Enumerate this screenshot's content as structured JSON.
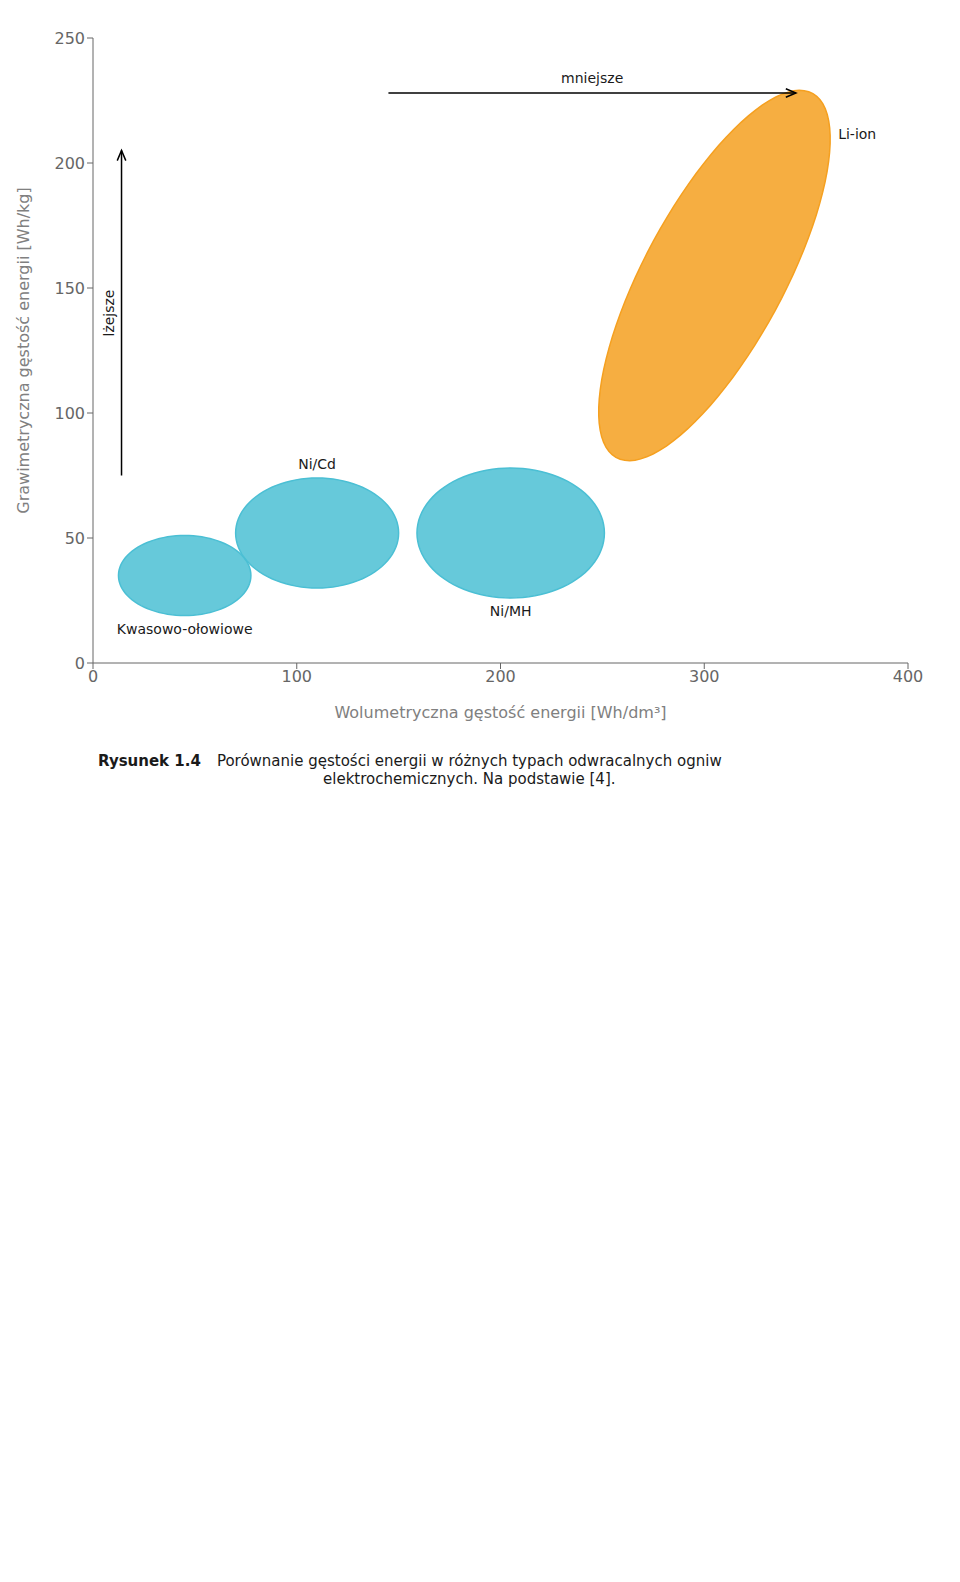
{
  "chart_data": {
    "type": "ellipse",
    "title": "Rysunek 1.4",
    "subtitle": [
      "Porównanie gęstości energii w różnych typach odwracalnych ogniw",
      "elektrochemicznych. Na podstawie [4]."
    ],
    "xlabel": "Wolumetryczna gęstość energii [Wh/dm³]",
    "ylabel": "Grawimetryczna gęstość energii [Wh/kg]",
    "xlim": [
      0,
      400
    ],
    "ylim": [
      0,
      250
    ],
    "xticks": [
      0,
      100,
      200,
      300,
      400
    ],
    "yticks": [
      0,
      50,
      100,
      150,
      200,
      250
    ],
    "grid": false,
    "series": [
      {
        "name": "Kwasowo-ołowiowe",
        "color": "#4bbfd4",
        "cx": 45,
        "cy": 35,
        "width": 65,
        "height": 32,
        "angle": 0
      },
      {
        "name": "Ni/Cd",
        "color": "#4bbfd4",
        "cx": 110,
        "cy": 52,
        "width": 80,
        "height": 44,
        "angle": 0
      },
      {
        "name": "Ni/MH",
        "color": "#4bbfd4",
        "cx": 205,
        "cy": 52,
        "width": 92,
        "height": 52,
        "angle": 0
      },
      {
        "name": "Li-ion",
        "color": "#f5a020",
        "cx": 305,
        "cy": 155,
        "width": 65,
        "height": 175,
        "angle": -35
      }
    ],
    "annotations": [
      {
        "text": "mniejsze",
        "x_start": 145,
        "y_start": 228,
        "x_end": 345,
        "y_end": 228
      },
      {
        "text": "lżejsze",
        "x_start": 14,
        "y_start": 75,
        "x_end": 14,
        "y_end": 205
      }
    ]
  }
}
